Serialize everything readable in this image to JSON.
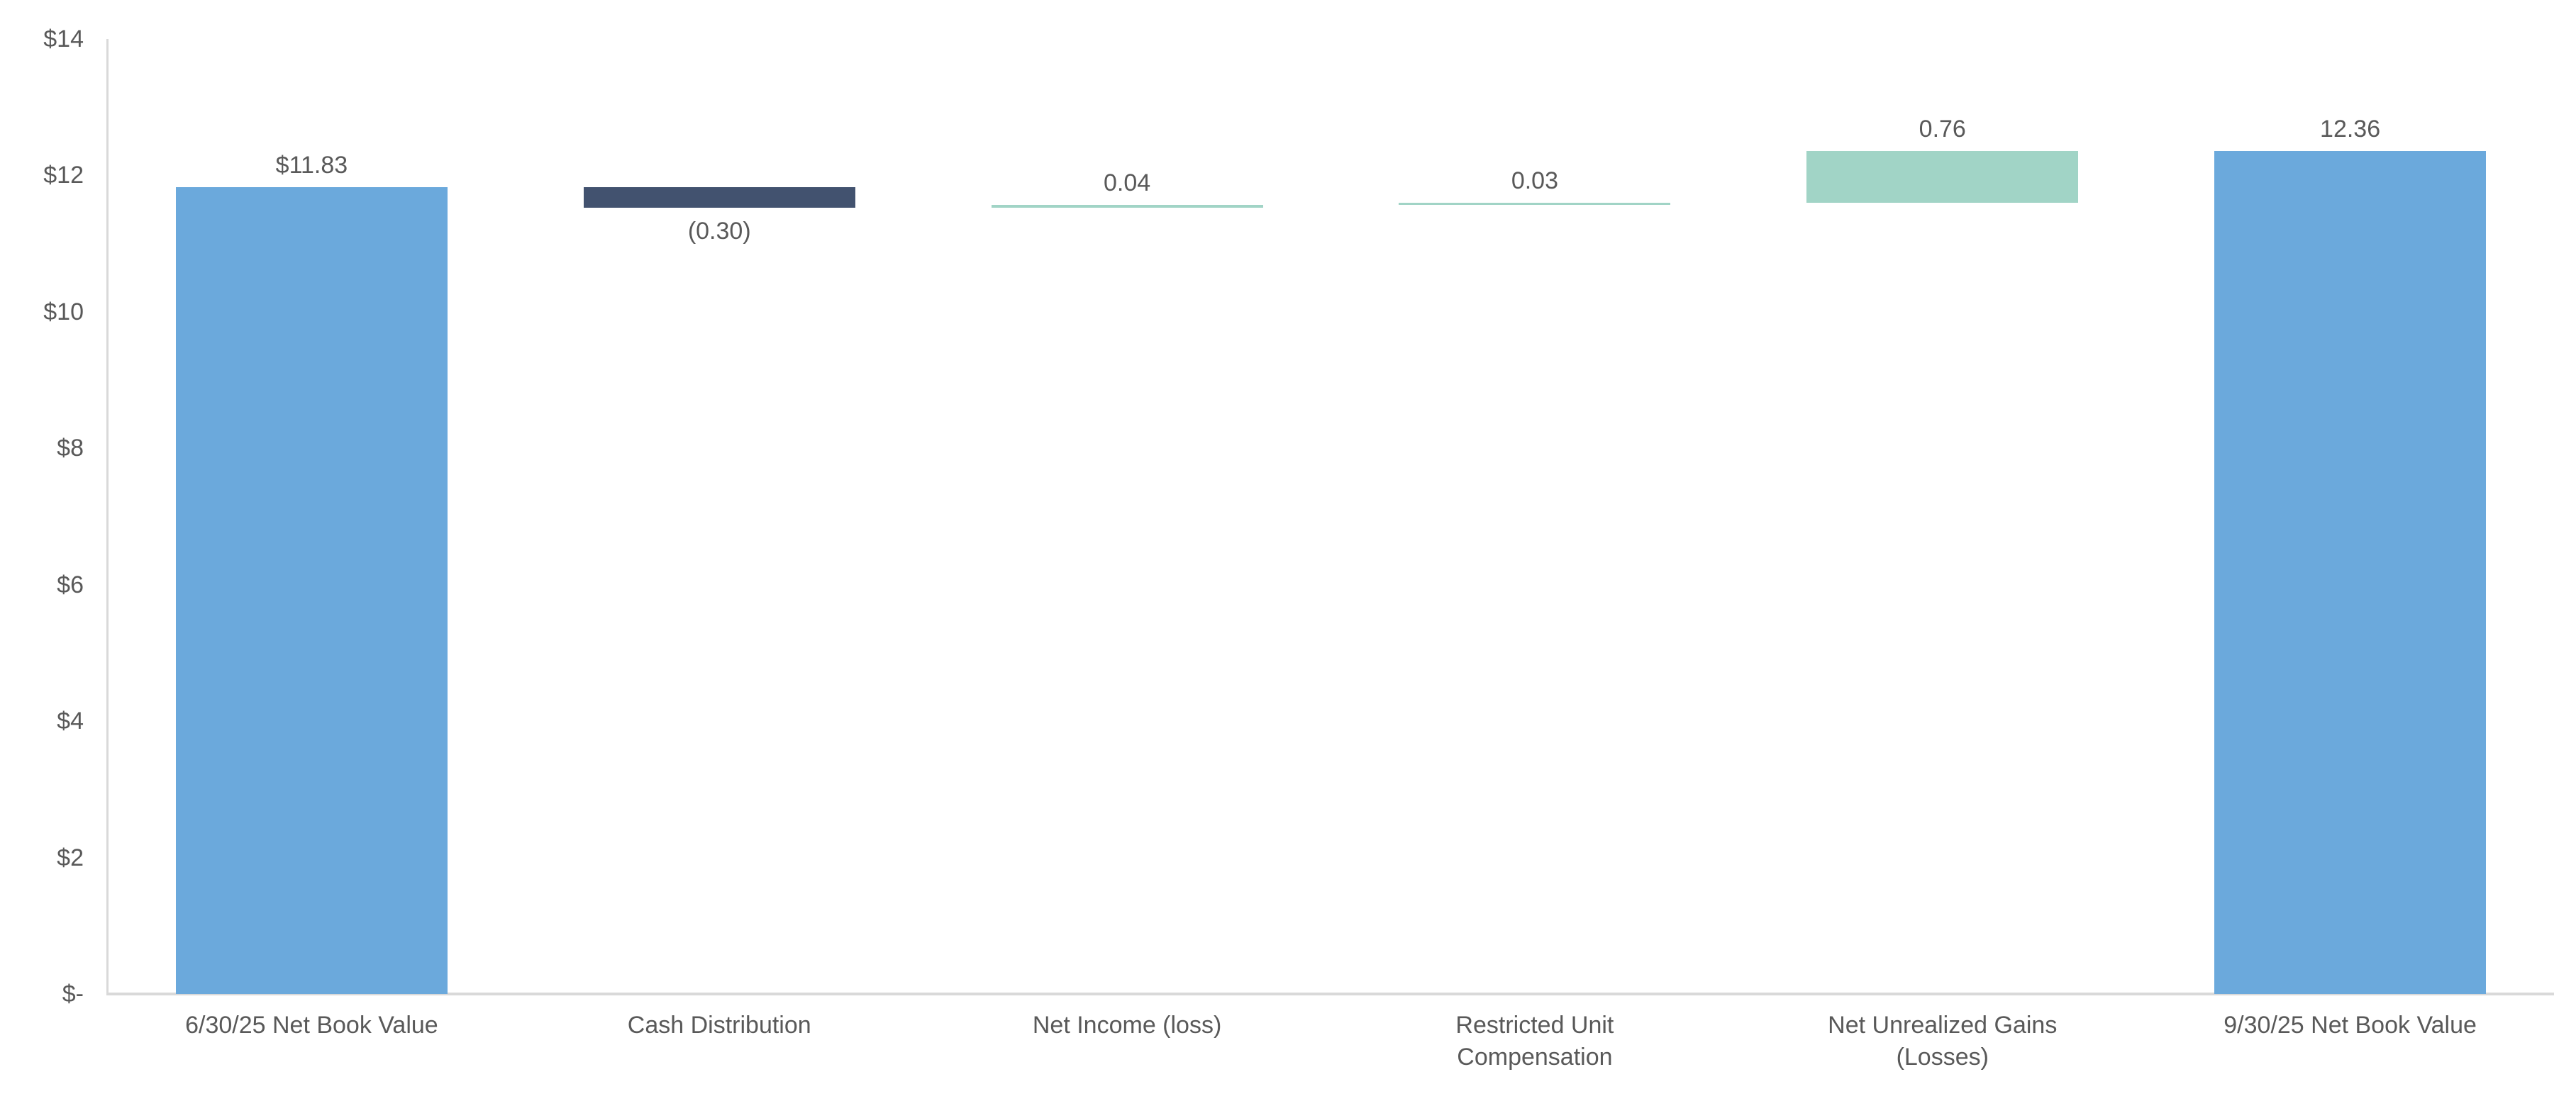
{
  "chart_data": {
    "type": "bar",
    "subtype": "waterfall",
    "title": "",
    "legend_position": "none",
    "grid": "off",
    "categories": [
      "6/30/25 Net Book Value",
      "Cash Distribution",
      "Net Income (loss)",
      "Restricted Unit Compensation",
      "Net Unrealized Gains (Losses)",
      "9/30/25 Net Book Value"
    ],
    "bars": [
      {
        "category": "6/30/25 Net Book Value",
        "base": 0,
        "end": 11.83,
        "value": 11.83,
        "label": "$11.83",
        "label_position": "above",
        "color": "blue"
      },
      {
        "category": "Cash Distribution",
        "base": 11.53,
        "end": 11.83,
        "value": -0.3,
        "label": "(0.30)",
        "label_position": "below",
        "color": "navy"
      },
      {
        "category": "Net Income (loss)",
        "base": 11.53,
        "end": 11.57,
        "value": 0.04,
        "label": "0.04",
        "label_position": "above",
        "color": "mint"
      },
      {
        "category": "Restricted Unit Compensation",
        "base": 11.57,
        "end": 11.6,
        "value": 0.03,
        "label": "0.03",
        "label_position": "above",
        "color": "mint"
      },
      {
        "category": "Net Unrealized Gains (Losses)",
        "base": 11.6,
        "end": 12.36,
        "value": 0.76,
        "label": "0.76",
        "label_position": "above",
        "color": "mint"
      },
      {
        "category": "9/30/25 Net Book Value",
        "base": 0,
        "end": 12.36,
        "value": 12.36,
        "label": "12.36",
        "label_position": "above",
        "color": "blue"
      }
    ],
    "y_axis": {
      "min": 0,
      "max": 14,
      "tick_step": 2,
      "tick_values": [
        0,
        2,
        4,
        6,
        8,
        10,
        12,
        14
      ],
      "tick_labels": [
        "$-",
        "$2",
        "$4",
        "$6",
        "$8",
        "$10",
        "$12",
        "$14"
      ]
    },
    "colors": {
      "blue": "#6ba9dc",
      "navy": "#42526f",
      "mint": "#a1d4c6",
      "axis_line": "#d9d9d9",
      "text": "#595959"
    }
  }
}
